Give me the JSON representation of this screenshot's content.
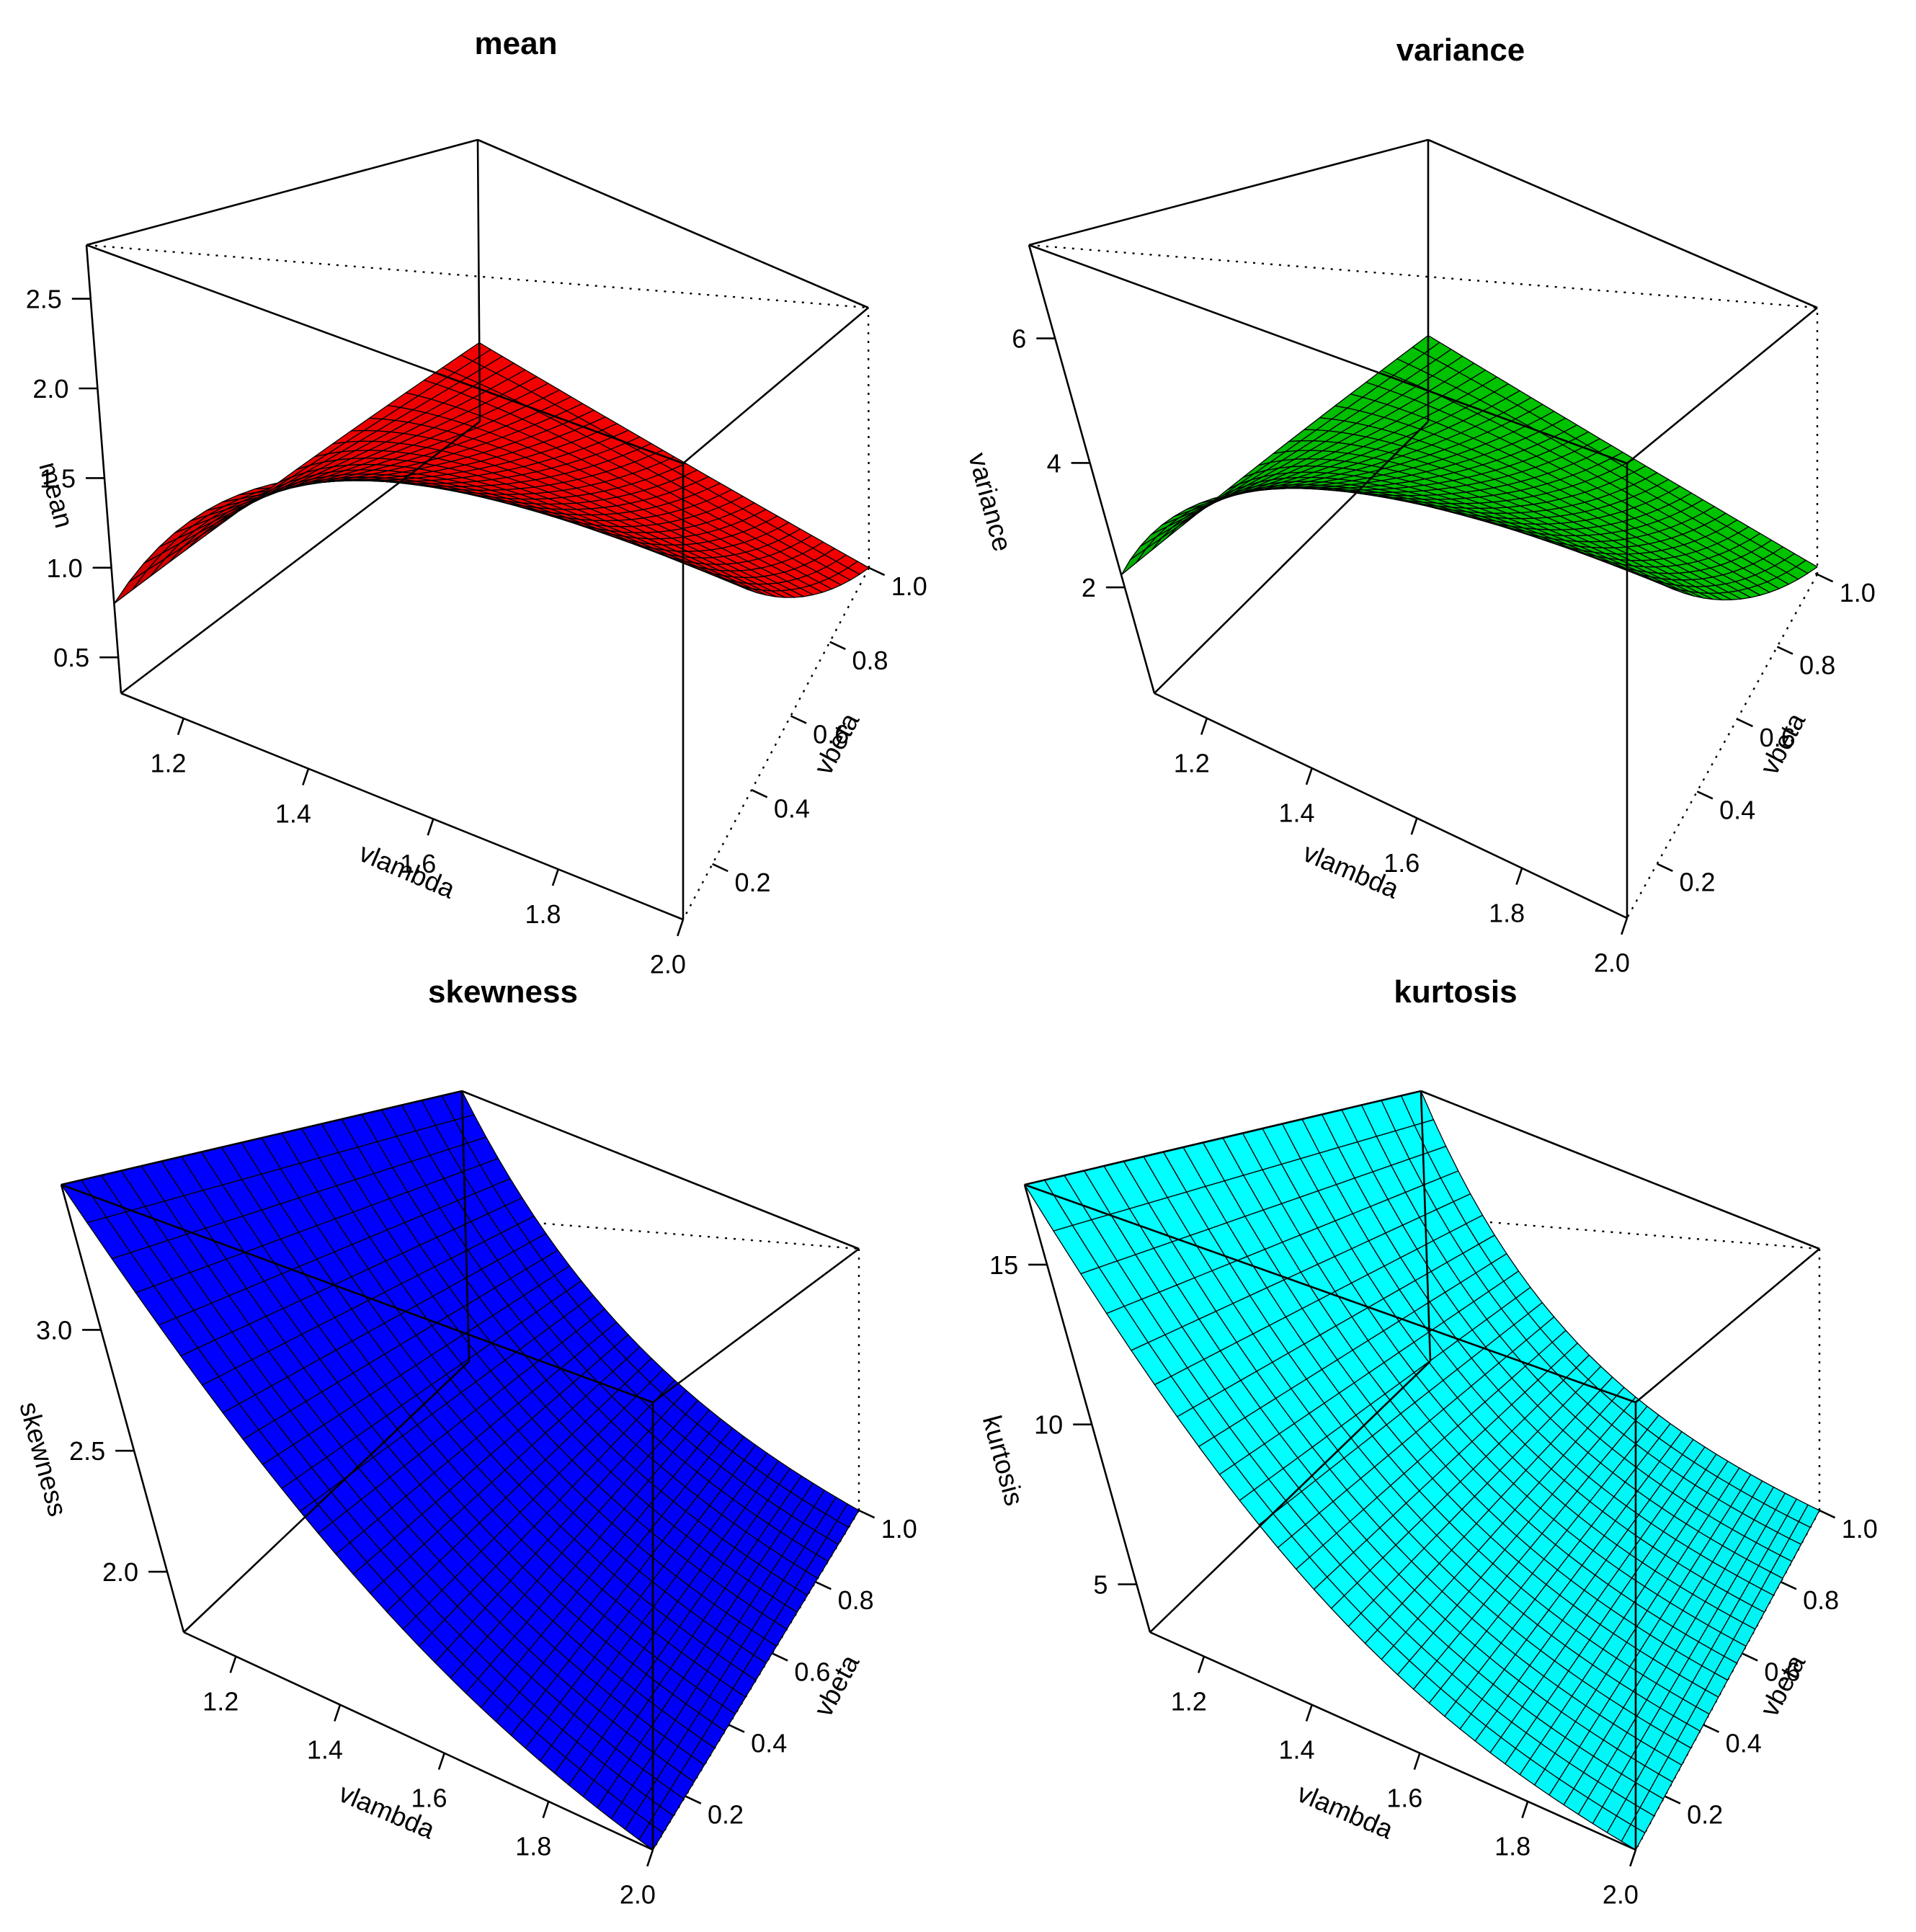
{
  "figure": {
    "layout": "2x2 grid of 3D perspective surface plots"
  },
  "chart_data": [
    {
      "type": "surface",
      "title": "mean",
      "xlabel": "vlambda",
      "ylabel": "vbeta",
      "zlabel": "mean",
      "color": "#ff0000",
      "x_ticks": [
        "1.2",
        "1.4",
        "1.6",
        "1.8",
        "2.0"
      ],
      "y_ticks": [
        "0.2",
        "0.4",
        "0.6",
        "0.8",
        "1.0"
      ],
      "z_ticks": [
        "0.5",
        "1.0",
        "1.5",
        "2.0",
        "2.5"
      ],
      "xlim": [
        1.1,
        2.0
      ],
      "ylim": [
        0.05,
        1.0
      ],
      "zlim": [
        0.3,
        2.8
      ],
      "shape": "rises with vlambda; at small vbeta the surface climbs steeply toward ~2.4, near vbeta = 1 it stays about 0.3-1.0",
      "sample_points": [
        {
          "x": 1.1,
          "y": 1.0,
          "z": 1.0
        },
        {
          "x": 1.1,
          "y": 0.05,
          "z": 0.8
        },
        {
          "x": 2.0,
          "y": 0.05,
          "z": 2.4
        },
        {
          "x": 2.0,
          "y": 1.0,
          "z": 0.3
        }
      ]
    },
    {
      "type": "surface",
      "title": "variance",
      "xlabel": "vlambda",
      "ylabel": "vbeta",
      "zlabel": "variance",
      "color": "#00cc00",
      "x_ticks": [
        "1.2",
        "1.4",
        "1.6",
        "1.8",
        "2.0"
      ],
      "y_ticks": [
        "0.2",
        "0.4",
        "0.6",
        "0.8",
        "1.0"
      ],
      "z_ticks": [
        "2",
        "4",
        "6"
      ],
      "xlim": [
        1.1,
        2.0
      ],
      "ylim": [
        0.05,
        1.0
      ],
      "zlim": [
        0.3,
        7.5
      ],
      "shape": "rises with vlambda; at small vbeta the surface climbs toward ~6.1, near vbeta = 1 it stays about 0.5-2.5",
      "sample_points": [
        {
          "x": 1.1,
          "y": 1.0,
          "z": 2.5
        },
        {
          "x": 1.1,
          "y": 0.05,
          "z": 2.2
        },
        {
          "x": 2.0,
          "y": 0.05,
          "z": 6.1
        },
        {
          "x": 2.0,
          "y": 1.0,
          "z": 0.5
        }
      ]
    },
    {
      "type": "surface",
      "title": "skewness",
      "xlabel": "vlambda",
      "ylabel": "vbeta",
      "zlabel": "skewness",
      "color": "#0000ff",
      "x_ticks": [
        "1.2",
        "1.4",
        "1.6",
        "1.8",
        "2.0"
      ],
      "y_ticks": [
        "0.2",
        "0.4",
        "0.6",
        "0.8",
        "1.0"
      ],
      "z_ticks": [
        "2.0",
        "2.5",
        "3.0"
      ],
      "xlim": [
        1.1,
        2.0
      ],
      "ylim": [
        0.05,
        1.0
      ],
      "zlim": [
        1.75,
        3.6
      ],
      "shape": "decreases with vlambda from ~3.6 at vlambda = 1.1 to ~1.75 at vlambda = 2.0; nearly constant across vbeta",
      "sample_points": [
        {
          "x": 1.1,
          "y": 0.05,
          "z": 3.6
        },
        {
          "x": 1.1,
          "y": 1.0,
          "z": 3.6
        },
        {
          "x": 2.0,
          "y": 0.05,
          "z": 1.75
        },
        {
          "x": 2.0,
          "y": 1.0,
          "z": 1.75
        }
      ]
    },
    {
      "type": "surface",
      "title": "kurtosis",
      "xlabel": "vlambda",
      "ylabel": "vbeta",
      "zlabel": "kurtosis",
      "color": "#00ffff",
      "x_ticks": [
        "1.2",
        "1.4",
        "1.6",
        "1.8",
        "2.0"
      ],
      "y_ticks": [
        "0.2",
        "0.4",
        "0.6",
        "0.8",
        "1.0"
      ],
      "z_ticks": [
        "5",
        "10",
        "15"
      ],
      "xlim": [
        1.1,
        2.0
      ],
      "ylim": [
        0.05,
        1.0
      ],
      "zlim": [
        3.5,
        17.5
      ],
      "shape": "decreases with vlambda from ~17.5 at vlambda = 1.1 to ~3.5 at vlambda = 2.0; nearly constant across vbeta",
      "sample_points": [
        {
          "x": 1.1,
          "y": 0.05,
          "z": 17.5
        },
        {
          "x": 1.1,
          "y": 1.0,
          "z": 17.5
        },
        {
          "x": 2.0,
          "y": 0.05,
          "z": 3.5
        },
        {
          "x": 2.0,
          "y": 1.0,
          "z": 3.5
        }
      ]
    }
  ]
}
